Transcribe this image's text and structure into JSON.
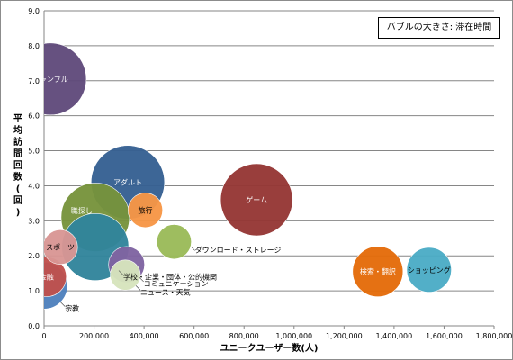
{
  "chart_data": {
    "type": "scatter",
    "annotation": "バブルの大きさ: 滞在時間",
    "xlabel": "ユニークユーザー数(人)",
    "ylabel": "平均訪問回数(回)",
    "xlim": [
      0,
      1800000
    ],
    "ylim": [
      0,
      9
    ],
    "xticks": [
      0,
      200000,
      400000,
      600000,
      800000,
      1000000,
      1200000,
      1400000,
      1600000,
      1800000
    ],
    "xtick_labels": [
      "0",
      "200,000",
      "400,000",
      "600,000",
      "800,000",
      "1,000,000",
      "1,200,000",
      "1,400,000",
      "1,600,000",
      "1,800,000"
    ],
    "yticks": [
      0,
      1,
      2,
      3,
      4,
      5,
      6,
      7,
      8,
      9
    ],
    "ytick_labels": [
      "0.0",
      "1.0",
      "2.0",
      "3.0",
      "4.0",
      "5.0",
      "6.0",
      "7.0",
      "8.0",
      "9.0"
    ],
    "grid": true,
    "bubbles": [
      {
        "label": "ギャンブル",
        "x": 25000,
        "y": 7.05,
        "size": 1.0,
        "color": "#604a7b",
        "label_color": "#ffffff",
        "label_position": "center"
      },
      {
        "label": "アダルト",
        "x": 335000,
        "y": 4.1,
        "size": 1.02,
        "color": "#366092",
        "label_color": "#ffffff",
        "label_position": "center"
      },
      {
        "label": "ゲーム",
        "x": 850000,
        "y": 3.6,
        "size": 1.0,
        "color": "#953735",
        "label_color": "#ffffff",
        "label_position": "center"
      },
      {
        "label": "職探し",
        "x": 205000,
        "y": 3.1,
        "size": 0.95,
        "color": "#77933c",
        "label_color": "#ffffff",
        "label_position": "upper-left"
      },
      {
        "label": "宗教",
        "x": 0,
        "y": 1.15,
        "size": 0.65,
        "color": "#4f81bd",
        "label_color": "#000000",
        "label_position": "outside-lower-right"
      },
      {
        "label": "金融",
        "x": 10000,
        "y": 1.4,
        "size": 0.55,
        "color": "#c0504d",
        "label_color": "#ffffff",
        "label_position": "center"
      },
      {
        "label": "学校・企業・団体・公的機関",
        "x": 205000,
        "y": 2.25,
        "size": 0.93,
        "color": "#31859c",
        "label_color": "#000000",
        "label_position": "outside-lower-right"
      },
      {
        "label": "スポーツ",
        "x": 65000,
        "y": 2.25,
        "size": 0.48,
        "color": "#d99694",
        "label_color": "#000000",
        "label_position": "center"
      },
      {
        "label": "旅行",
        "x": 405000,
        "y": 3.3,
        "size": 0.48,
        "color": "#f79646",
        "label_color": "#000000",
        "label_position": "center"
      },
      {
        "label": "コミュニケーション",
        "x": 330000,
        "y": 1.75,
        "size": 0.5,
        "color": "#8064a2",
        "label_color": "#000000",
        "label_position": "outside-lower-right"
      },
      {
        "label": "ニュース・天気",
        "x": 325000,
        "y": 1.45,
        "size": 0.42,
        "color": "#d7e4bd",
        "label_color": "#000000",
        "label_position": "outside-lower-right"
      },
      {
        "label": "ダウンロード・ストレージ",
        "x": 520000,
        "y": 2.4,
        "size": 0.48,
        "color": "#9bbb59",
        "label_color": "#000000",
        "label_position": "outside-right"
      },
      {
        "label": "検索・翻訳",
        "x": 1335000,
        "y": 1.55,
        "size": 0.7,
        "color": "#e46c0a",
        "label_color": "#ffffff",
        "label_position": "center"
      },
      {
        "label": "ショッピング",
        "x": 1540000,
        "y": 1.6,
        "size": 0.62,
        "color": "#4bacc6",
        "label_color": "#000000",
        "label_position": "center"
      }
    ]
  }
}
